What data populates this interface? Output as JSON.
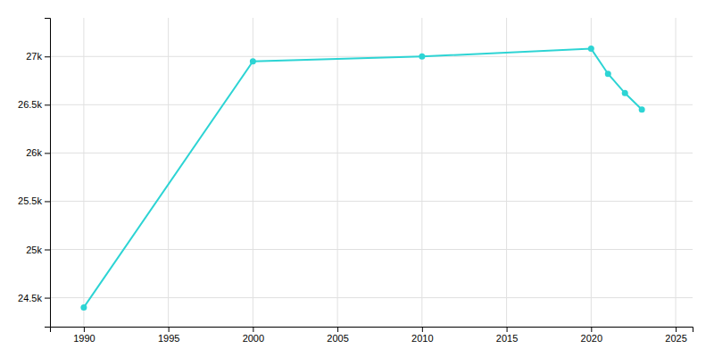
{
  "chart_data": {
    "type": "line",
    "x": [
      1990,
      2000,
      2010,
      2020,
      2021,
      2022,
      2023
    ],
    "values": [
      24400,
      26950,
      27000,
      27080,
      26820,
      26620,
      26450
    ],
    "color": "#2DD4D4",
    "marker": "circle",
    "xlim": [
      1988,
      2026
    ],
    "ylim": [
      24200,
      27400
    ],
    "xticks": [
      1990,
      1995,
      2000,
      2005,
      2010,
      2015,
      2020,
      2025
    ],
    "yticks": [
      {
        "value": 24500,
        "label": "24.5k"
      },
      {
        "value": 25000,
        "label": "25k"
      },
      {
        "value": 25500,
        "label": "25.5k"
      },
      {
        "value": 26000,
        "label": "26k"
      },
      {
        "value": 26500,
        "label": "26.5k"
      },
      {
        "value": 27000,
        "label": "27k"
      }
    ],
    "grid": true
  }
}
